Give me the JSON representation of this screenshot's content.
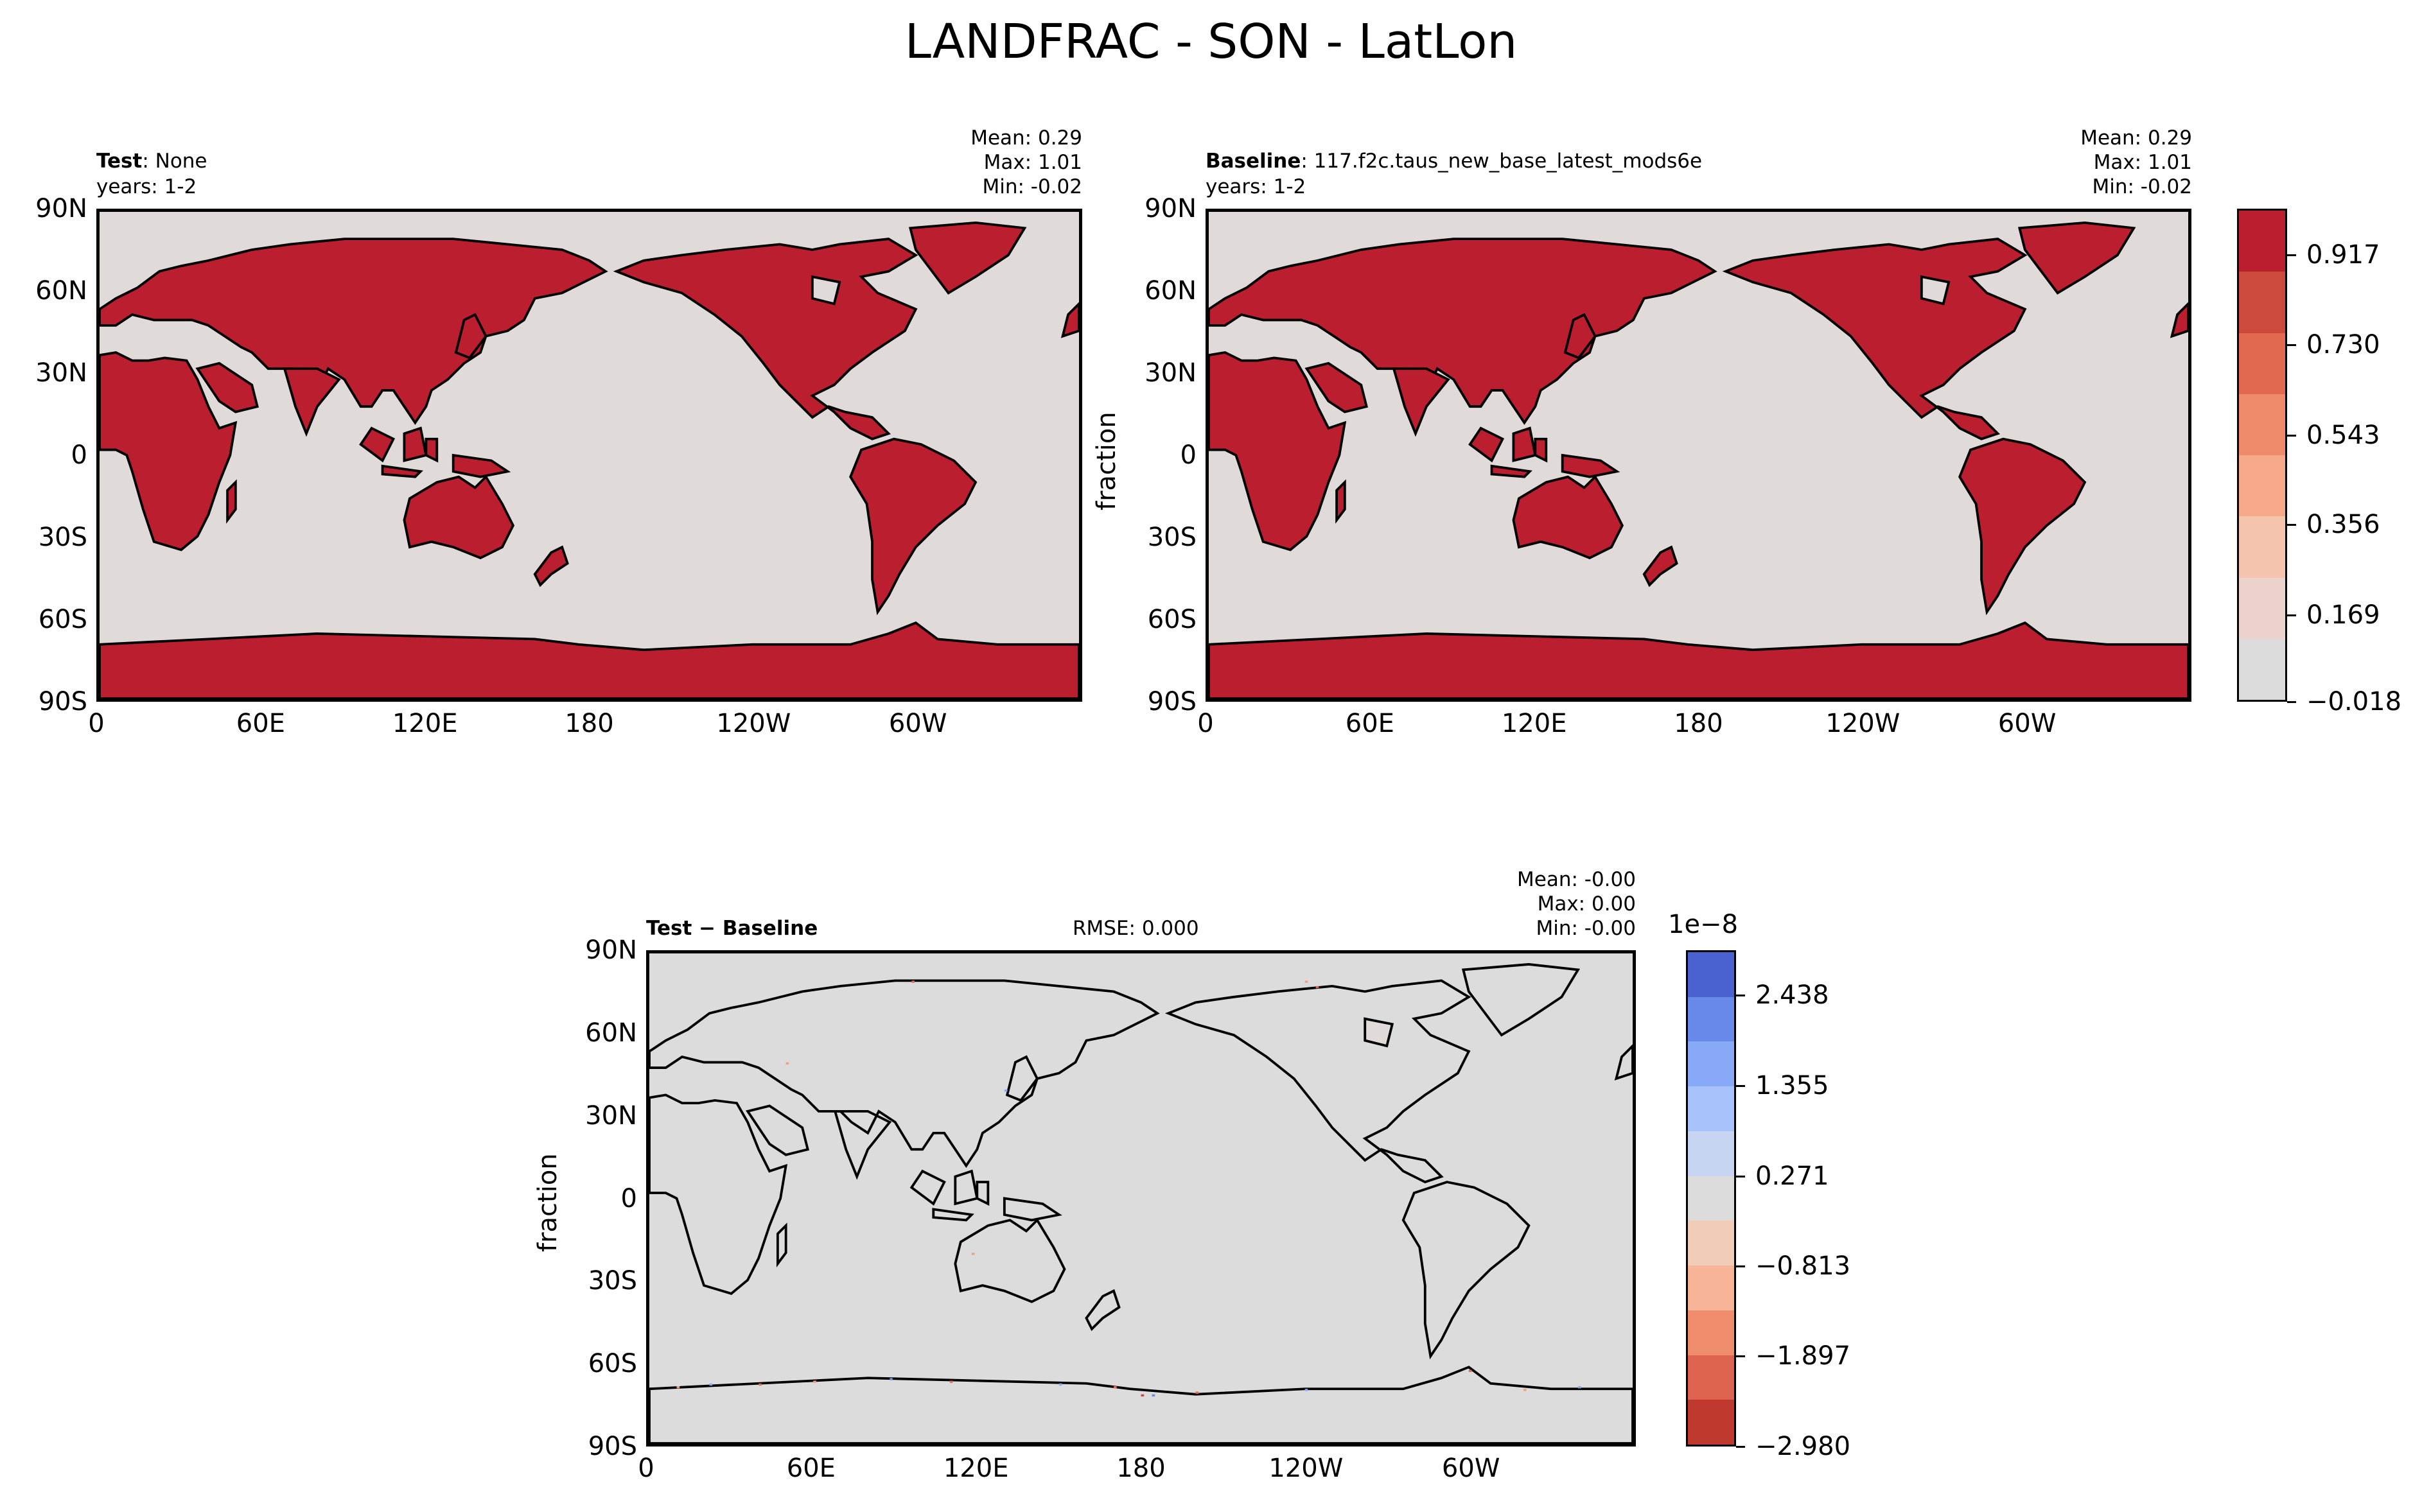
{
  "title": "LANDFRAC - SON - LatLon",
  "chart_data": [
    {
      "type": "heatmap",
      "panel": "test",
      "label_bold": "Test",
      "label_text": ": None",
      "years": "years: 1-2",
      "stats": {
        "mean": "Mean:  0.29",
        "max": "Max:  1.01",
        "min": "Min: -0.02"
      },
      "xticks": [
        "0",
        "60E",
        "120E",
        "180",
        "120W",
        "60W"
      ],
      "yticks": [
        "90N",
        "60N",
        "30N",
        "0",
        "30S",
        "60S",
        "90S"
      ],
      "xlim": [
        0,
        360
      ],
      "ylim": [
        -90,
        90
      ],
      "land_color": "#bb1e2f",
      "ocean_color": "#e0dbd9"
    },
    {
      "type": "heatmap",
      "panel": "baseline",
      "label_bold": "Baseline",
      "label_text": ": 117.f2c.taus_new_base_latest_mods6e",
      "years": "years: 1-2",
      "stats": {
        "mean": "Mean:  0.29",
        "max": "Max:  1.01",
        "min": "Min: -0.02"
      },
      "ylabel": "fraction",
      "xticks": [
        "0",
        "60E",
        "120E",
        "180",
        "120W",
        "60W"
      ],
      "yticks": [
        "90N",
        "60N",
        "30N",
        "0",
        "30S",
        "60S",
        "90S"
      ],
      "xlim": [
        0,
        360
      ],
      "ylim": [
        -90,
        90
      ],
      "colorbar": {
        "ticks": [
          "0.917",
          "0.730",
          "0.543",
          "0.356",
          "0.169",
          "−0.018"
        ],
        "colors": [
          "#dcdcdc",
          "#ecd3cb",
          "#f5c4ad",
          "#f6a889",
          "#ef8b6b",
          "#e0694f",
          "#cc4a3b",
          "#bb1e2f"
        ]
      }
    },
    {
      "type": "heatmap",
      "panel": "difference",
      "label": "Test − Baseline",
      "rmse": "RMSE: 0.000",
      "stats": {
        "mean": "Mean: -0.00",
        "max": "Max:  0.00",
        "min": "Min: -0.00"
      },
      "ylabel": "fraction",
      "xticks": [
        "0",
        "60E",
        "120E",
        "180",
        "120W",
        "60W"
      ],
      "yticks": [
        "90N",
        "60N",
        "30N",
        "0",
        "30S",
        "60S",
        "90S"
      ],
      "xlim": [
        0,
        360
      ],
      "ylim": [
        -90,
        90
      ],
      "background_color": "#dcdcdc",
      "colorbar": {
        "exponent": "1e−8",
        "ticks": [
          "2.438",
          "1.355",
          "0.271",
          "−0.813",
          "−1.897",
          "−2.980"
        ],
        "colors": [
          "#4a62d0",
          "#6889ea",
          "#88a8f8",
          "#a8c3fb",
          "#c6d6f2",
          "#dcdcdc",
          "#f1cdb8",
          "#f7b497",
          "#ee8c6b",
          "#de6450",
          "#c0392f"
        ]
      }
    }
  ]
}
